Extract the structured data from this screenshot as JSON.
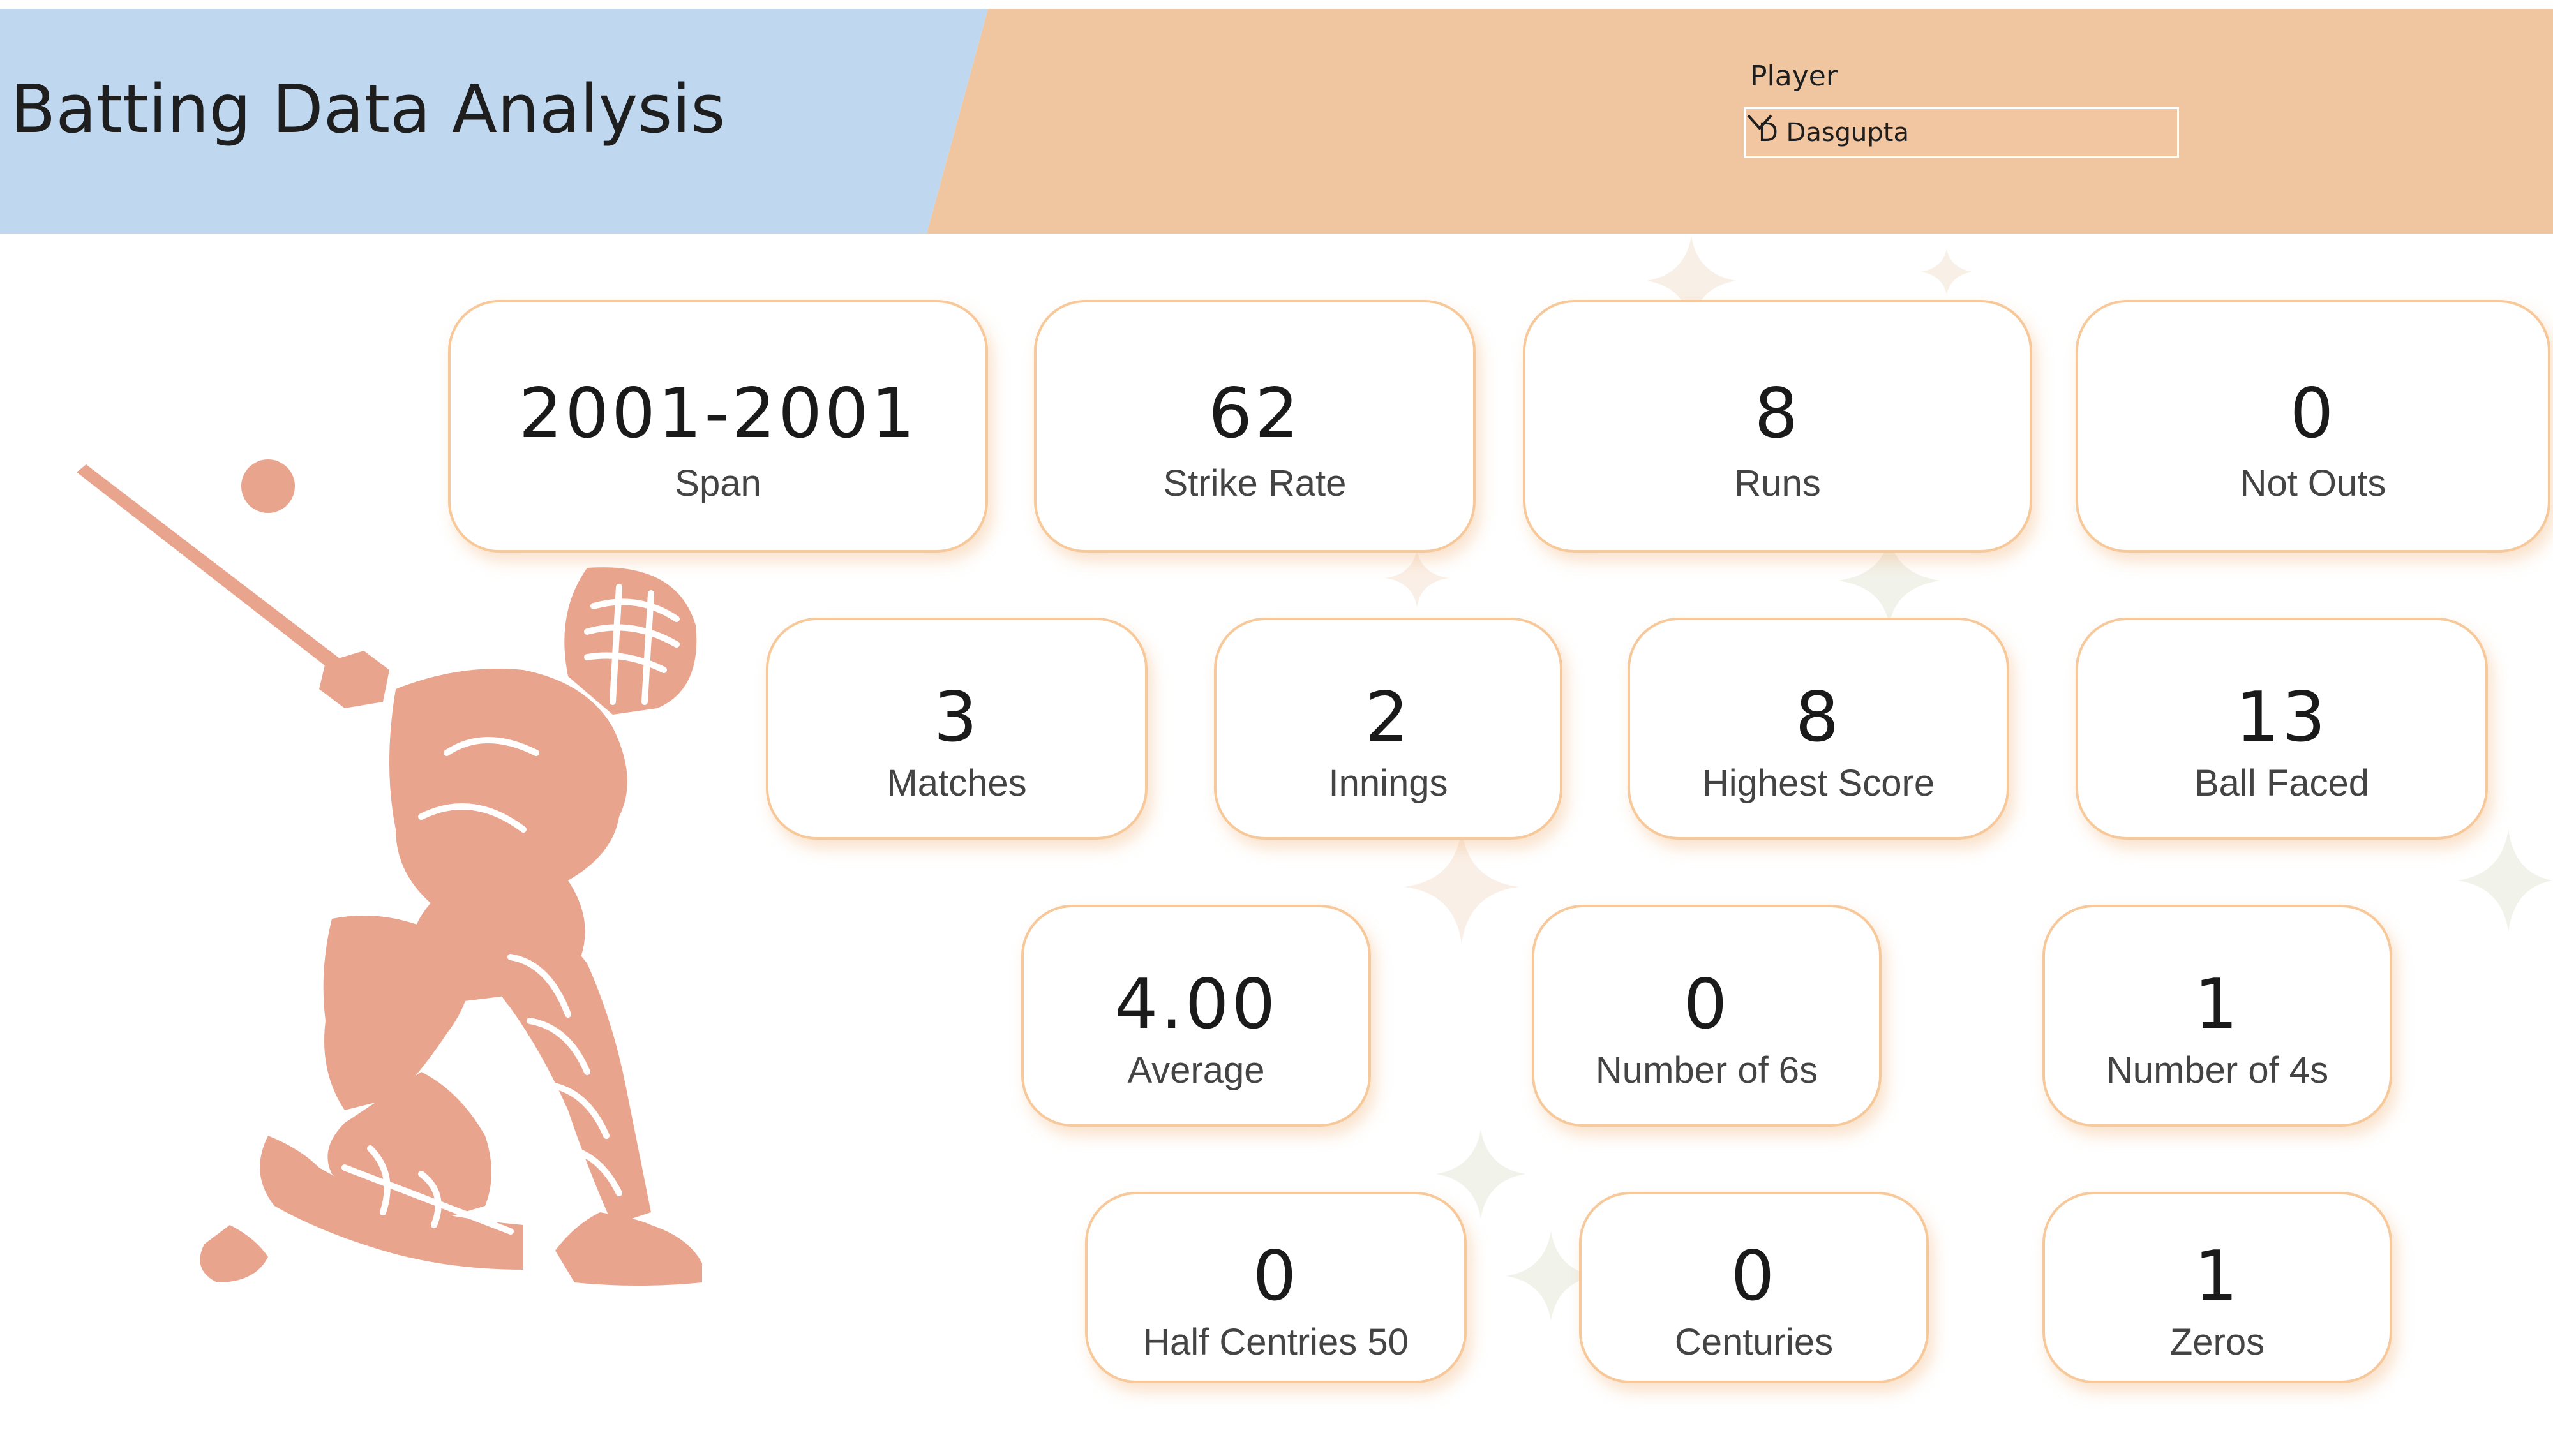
{
  "header": {
    "title": "Batting Data Analysis",
    "slicer": {
      "label": "Player",
      "selected": "D Dasgupta",
      "icon": "chevron-down-icon"
    }
  },
  "colors": {
    "title_band": "#c0d8ef",
    "slicer_band": "#f0c6a0",
    "card_border": "#f7c99a",
    "player_art": "#e9a48e"
  },
  "cards": {
    "span": {
      "value": "2001-2001",
      "label": "Span"
    },
    "strike_rate": {
      "value": "62",
      "label": "Strike Rate"
    },
    "runs": {
      "value": "8",
      "label": "Runs"
    },
    "not_outs": {
      "value": "0",
      "label": "Not Outs"
    },
    "matches": {
      "value": "3",
      "label": "Matches"
    },
    "innings": {
      "value": "2",
      "label": "Innings"
    },
    "highest_score": {
      "value": "8",
      "label": "Highest Score"
    },
    "ball_faced": {
      "value": "13",
      "label": "Ball Faced"
    },
    "average": {
      "value": "4.00",
      "label": "Average"
    },
    "number_of_6s": {
      "value": "0",
      "label": "Number of 6s"
    },
    "number_of_4s": {
      "value": "1",
      "label": "Number of 4s"
    },
    "half_centuries": {
      "value": "0",
      "label": "Half Centries 50"
    },
    "centuries": {
      "value": "0",
      "label": "Centuries"
    },
    "zeros": {
      "value": "1",
      "label": "Zeros"
    }
  },
  "decoration": {
    "image": "cricket-batsman-silhouette"
  }
}
